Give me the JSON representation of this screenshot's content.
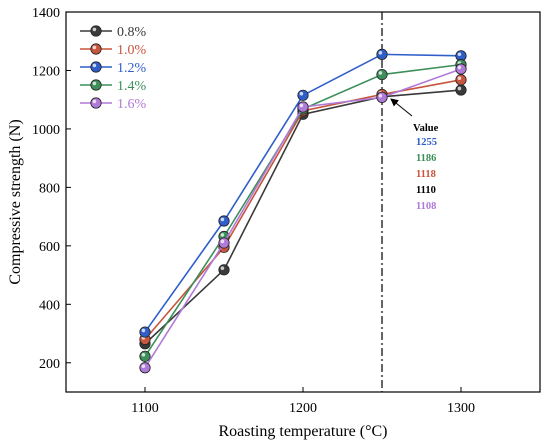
{
  "chart_data": {
    "type": "line",
    "title": "",
    "xlabel": "Roasting temperature (°C)",
    "ylabel": "Compressive strength (N)",
    "x": [
      1100,
      1150,
      1200,
      1250,
      1300
    ],
    "xlim": [
      1050,
      1350
    ],
    "ylim": [
      100,
      1400
    ],
    "x_ticks": [
      1100,
      1200,
      1300
    ],
    "y_ticks": [
      200,
      400,
      600,
      800,
      1000,
      1200,
      1400
    ],
    "grid": false,
    "legend_position": "top-left",
    "series": [
      {
        "name": "0.8%",
        "color": "#3a3a3a",
        "values": [
          265,
          518,
          1050,
          1110,
          1133
        ]
      },
      {
        "name": "1.0%",
        "color": "#c8553d",
        "values": [
          280,
          595,
          1062,
          1118,
          1168
        ]
      },
      {
        "name": "1.2%",
        "color": "#2f5ec9",
        "values": [
          305,
          685,
          1115,
          1255,
          1250
        ]
      },
      {
        "name": "1.4%",
        "color": "#3d8f5a",
        "values": [
          222,
          632,
          1068,
          1186,
          1220
        ]
      },
      {
        "name": "1.6%",
        "color": "#b07ad9",
        "values": [
          183,
          610,
          1075,
          1108,
          1205
        ]
      }
    ],
    "reference_line": {
      "x": 1250,
      "style": "dash-dot"
    },
    "annotation": {
      "title": "Value",
      "entries": [
        {
          "text": "1255",
          "color": "#2f5ec9"
        },
        {
          "text": "1186",
          "color": "#3d8f5a"
        },
        {
          "text": "1118",
          "color": "#c8553d"
        },
        {
          "text": "1110",
          "color": "#000000"
        },
        {
          "text": "1108",
          "color": "#b07ad9"
        }
      ]
    }
  }
}
